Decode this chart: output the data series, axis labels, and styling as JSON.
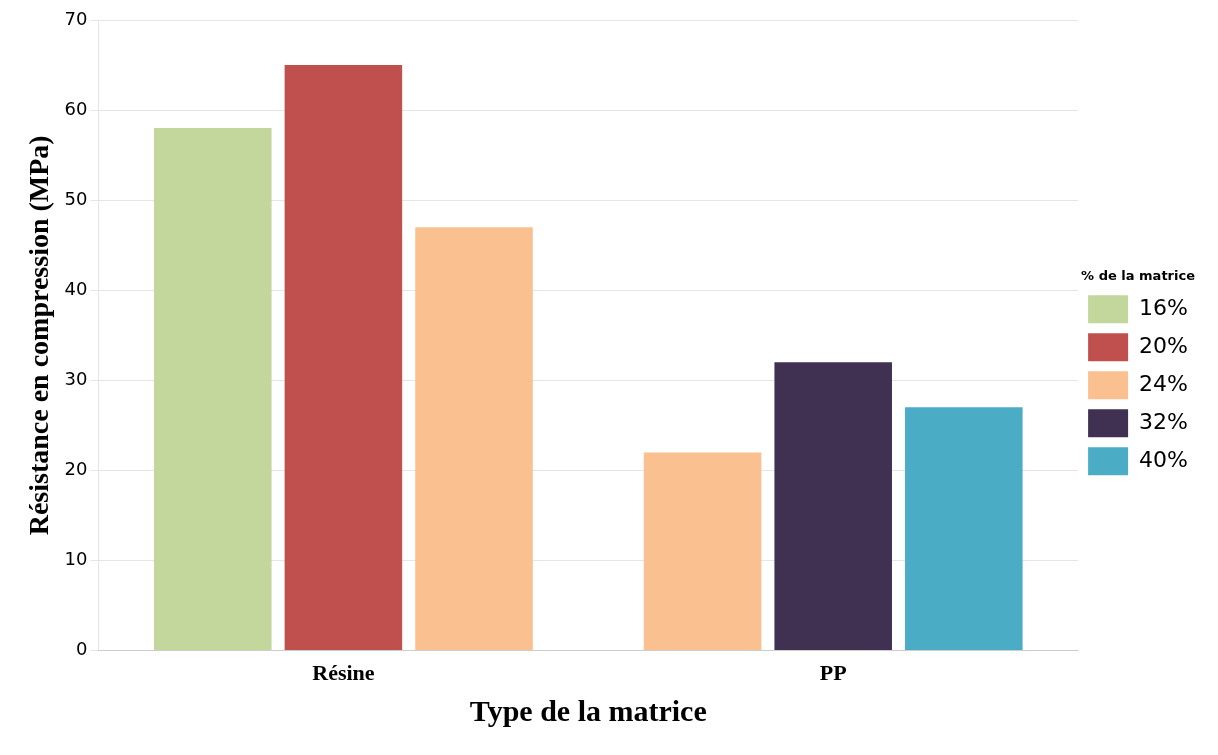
{
  "chart_data": {
    "type": "bar",
    "xlabel": "Type de la matrice",
    "ylabel": "Résistance en compression (MPa)",
    "legend_title": "% de la matrice",
    "categories": [
      "Résine",
      "PP"
    ],
    "series": [
      {
        "name": "16%",
        "color": "#c3d69b",
        "values": [
          58,
          null
        ]
      },
      {
        "name": "20%",
        "color": "#c0504d",
        "values": [
          65,
          null
        ]
      },
      {
        "name": "24%",
        "color": "#fac090",
        "values": [
          47,
          22
        ]
      },
      {
        "name": "32%",
        "color": "#403152",
        "values": [
          null,
          32
        ]
      },
      {
        "name": "40%",
        "color": "#4bacc6",
        "values": [
          null,
          27
        ]
      }
    ],
    "ylim": [
      0,
      70
    ],
    "yticks": [
      0,
      10,
      20,
      30,
      40,
      50,
      60,
      70
    ],
    "grid": "y",
    "legend": "right"
  }
}
